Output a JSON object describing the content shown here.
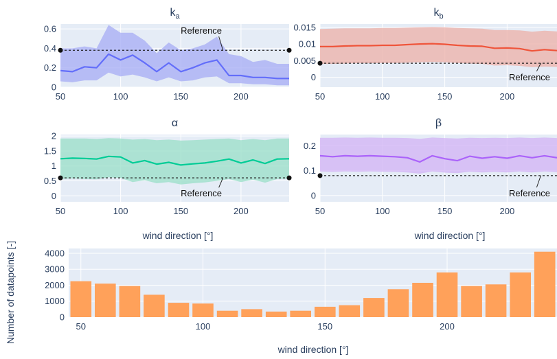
{
  "chart_data": [
    {
      "id": "ka",
      "type": "line",
      "title": "k",
      "title_sub": "a",
      "xlabel": "",
      "ylabel": "",
      "xlim": [
        50,
        240
      ],
      "ylim": [
        0,
        0.65
      ],
      "xticks": [
        50,
        100,
        150,
        200
      ],
      "yticks": [
        0,
        0.2,
        0.4,
        0.6
      ],
      "ytick_labels": [
        "0",
        "0.2",
        "0.4",
        "0.6"
      ],
      "color": "#636efa",
      "band_color": "#aab0f5",
      "x": [
        50,
        60,
        70,
        80,
        90,
        100,
        110,
        120,
        130,
        140,
        150,
        160,
        170,
        180,
        190,
        200,
        210,
        220,
        230,
        240
      ],
      "y": [
        0.17,
        0.16,
        0.21,
        0.2,
        0.34,
        0.28,
        0.33,
        0.25,
        0.16,
        0.25,
        0.16,
        0.2,
        0.25,
        0.28,
        0.12,
        0.12,
        0.1,
        0.1,
        0.09,
        0.09
      ],
      "band_upper": [
        0.4,
        0.4,
        0.42,
        0.4,
        0.64,
        0.56,
        0.56,
        0.48,
        0.35,
        0.46,
        0.38,
        0.4,
        0.44,
        0.52,
        0.34,
        0.32,
        0.26,
        0.28,
        0.24,
        0.24
      ],
      "band_lower": [
        0.06,
        0.05,
        0.07,
        0.07,
        0.15,
        0.11,
        0.13,
        0.1,
        0.06,
        0.1,
        0.06,
        0.07,
        0.1,
        0.11,
        0.04,
        0.04,
        0.03,
        0.03,
        0.02,
        0.02
      ],
      "reference": {
        "value": 0.38,
        "label": "Reference",
        "label_x": 167,
        "label_y": 0.55,
        "pointer_x": 185
      },
      "grid": true
    },
    {
      "id": "kb",
      "type": "line",
      "title": "k",
      "title_sub": "b",
      "xlabel": "",
      "ylabel": "",
      "xlim": [
        50,
        240
      ],
      "ylim": [
        -0.003,
        0.016
      ],
      "xticks": [
        50,
        100,
        150,
        200
      ],
      "yticks": [
        0,
        0.005,
        0.01,
        0.015
      ],
      "ytick_labels": [
        "0",
        "0.005",
        "0.01",
        "0.015"
      ],
      "color": "#ef553b",
      "band_color": "#ecb4ac",
      "x": [
        50,
        60,
        70,
        80,
        90,
        100,
        110,
        120,
        130,
        140,
        150,
        160,
        170,
        180,
        190,
        200,
        210,
        220,
        230,
        240
      ],
      "y": [
        0.0092,
        0.0092,
        0.0094,
        0.0095,
        0.0095,
        0.0096,
        0.0096,
        0.0098,
        0.01,
        0.0101,
        0.0099,
        0.0096,
        0.0094,
        0.0093,
        0.0087,
        0.0088,
        0.0086,
        0.0079,
        0.0083,
        0.008
      ],
      "band_upper": [
        0.0145,
        0.0146,
        0.0147,
        0.0147,
        0.0147,
        0.0148,
        0.0148,
        0.0149,
        0.015,
        0.0151,
        0.015,
        0.0148,
        0.0147,
        0.0146,
        0.0142,
        0.0142,
        0.0141,
        0.0137,
        0.014,
        0.0138
      ],
      "band_lower": [
        0.004,
        0.004,
        0.0041,
        0.0042,
        0.0042,
        0.0043,
        0.0043,
        0.0044,
        0.0045,
        0.0046,
        0.0045,
        0.0043,
        0.0041,
        0.004,
        0.0035,
        0.0036,
        0.0034,
        0.003,
        0.0032,
        0.0031
      ],
      "reference": {
        "value": 0.0042,
        "label": "Reference",
        "label_x": 218,
        "label_y": -0.0009,
        "pointer_x": 227
      },
      "grid": true
    },
    {
      "id": "alpha",
      "type": "line",
      "title": "α",
      "title_sub": "",
      "xlabel": "wind direction [°]",
      "ylabel": "",
      "xlim": [
        50,
        240
      ],
      "ylim": [
        -0.2,
        2.05
      ],
      "xticks": [
        50,
        100,
        150,
        200
      ],
      "yticks": [
        0,
        0.5,
        1,
        1.5,
        2
      ],
      "ytick_labels": [
        "0",
        "0.5",
        "1",
        "1.5",
        "2"
      ],
      "color": "#00cc96",
      "band_color": "#9ee0cb",
      "x": [
        50,
        60,
        70,
        80,
        90,
        100,
        110,
        120,
        130,
        140,
        150,
        160,
        170,
        180,
        190,
        200,
        210,
        220,
        230,
        240
      ],
      "y": [
        1.24,
        1.26,
        1.25,
        1.23,
        1.32,
        1.3,
        1.1,
        1.18,
        1.06,
        1.12,
        1.03,
        1.07,
        1.1,
        1.16,
        1.23,
        1.1,
        1.2,
        1.08,
        1.23,
        1.24
      ],
      "band_upper": [
        1.92,
        1.92,
        1.92,
        1.9,
        1.93,
        1.92,
        1.88,
        1.9,
        1.86,
        1.88,
        1.85,
        1.86,
        1.88,
        1.9,
        1.92,
        1.86,
        1.9,
        1.86,
        1.92,
        1.92
      ],
      "band_lower": [
        0.56,
        0.58,
        0.56,
        0.55,
        0.62,
        0.6,
        0.46,
        0.52,
        0.42,
        0.46,
        0.38,
        0.42,
        0.45,
        0.5,
        0.56,
        0.46,
        0.54,
        0.44,
        0.56,
        0.57
      ],
      "reference": {
        "value": 0.6,
        "label": "Reference",
        "label_x": 167,
        "label_y": -0.02,
        "pointer_x": 185
      },
      "grid": true
    },
    {
      "id": "beta",
      "type": "line",
      "title": "β",
      "title_sub": "",
      "xlabel": "wind direction [°]",
      "ylabel": "",
      "xlim": [
        50,
        240
      ],
      "ylim": [
        -0.025,
        0.245
      ],
      "xticks": [
        50,
        100,
        150,
        200
      ],
      "yticks": [
        0,
        0.1,
        0.2
      ],
      "ytick_labels": [
        "0",
        "0.1",
        "0.2"
      ],
      "color": "#ab63fa",
      "band_color": "#d3b7f5",
      "x": [
        50,
        60,
        70,
        80,
        90,
        100,
        110,
        120,
        130,
        140,
        150,
        160,
        170,
        180,
        190,
        200,
        210,
        220,
        230,
        240
      ],
      "y": [
        0.16,
        0.156,
        0.16,
        0.158,
        0.16,
        0.158,
        0.156,
        0.152,
        0.135,
        0.16,
        0.148,
        0.14,
        0.158,
        0.15,
        0.156,
        0.15,
        0.16,
        0.152,
        0.16,
        0.152
      ],
      "band_upper": [
        0.232,
        0.232,
        0.233,
        0.232,
        0.233,
        0.232,
        0.232,
        0.231,
        0.228,
        0.233,
        0.231,
        0.229,
        0.232,
        0.231,
        0.232,
        0.231,
        0.233,
        0.231,
        0.233,
        0.231
      ],
      "band_lower": [
        0.097,
        0.095,
        0.097,
        0.096,
        0.097,
        0.096,
        0.095,
        0.093,
        0.088,
        0.097,
        0.092,
        0.09,
        0.096,
        0.093,
        0.095,
        0.093,
        0.097,
        0.093,
        0.097,
        0.094
      ],
      "reference": {
        "value": 0.08,
        "label": "Reference",
        "label_x": 218,
        "label_y": -0.003,
        "pointer_x": 227
      },
      "grid": true
    },
    {
      "id": "counts",
      "type": "bar",
      "title": "",
      "xlabel": "wind direction [°]",
      "ylabel": "Number of datapoints [-]",
      "xlim": [
        45,
        245
      ],
      "ylim": [
        0,
        4300
      ],
      "xticks": [
        50,
        100,
        150,
        200
      ],
      "yticks": [
        0,
        1000,
        2000,
        3000,
        4000
      ],
      "ytick_labels": [
        "0",
        "1000",
        "2000",
        "3000",
        "4000"
      ],
      "color": "#ffa15a",
      "x": [
        50,
        60,
        70,
        80,
        90,
        100,
        110,
        120,
        130,
        140,
        150,
        160,
        170,
        180,
        190,
        200,
        210,
        220,
        230,
        240
      ],
      "values": [
        2250,
        2100,
        1950,
        1400,
        900,
        850,
        400,
        500,
        350,
        400,
        650,
        750,
        1200,
        1750,
        2150,
        2800,
        1950,
        2050,
        2800,
        4100
      ],
      "grid": true
    }
  ]
}
